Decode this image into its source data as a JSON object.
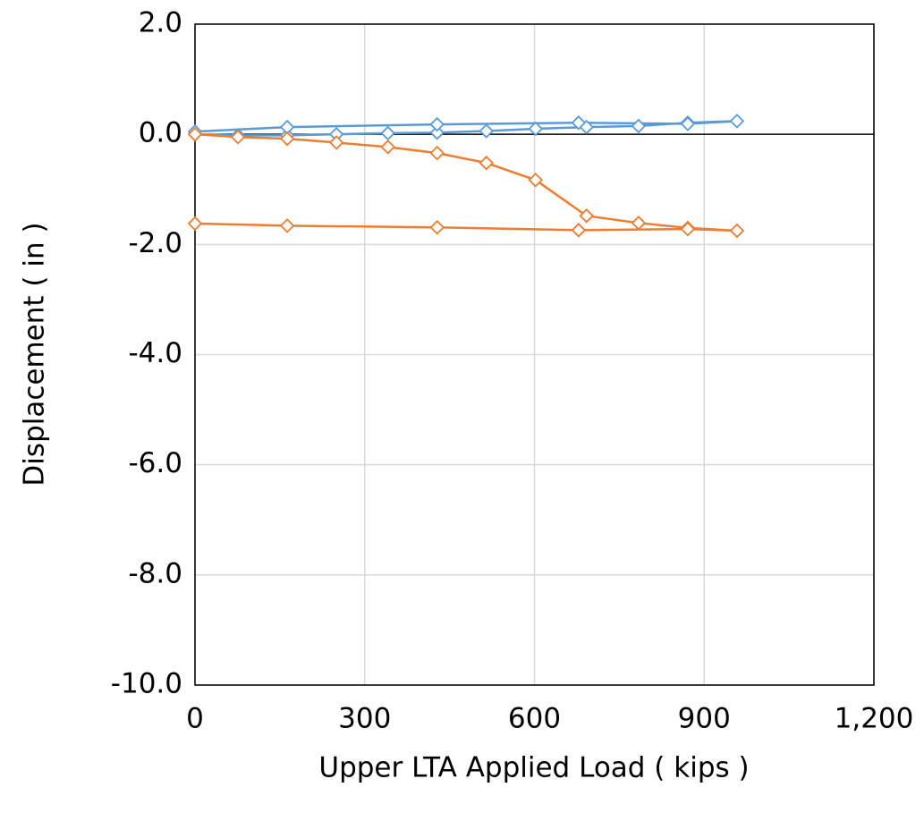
{
  "chart_data": {
    "type": "line",
    "xlabel": "Upper LTA Applied Load ( kips )",
    "ylabel": "Displacement ( in )",
    "xlim": [
      0,
      1200
    ],
    "xticks": [
      0,
      300,
      600,
      900,
      {
        "value": 1200,
        "label": "1,200"
      }
    ],
    "ylim": [
      -10,
      2
    ],
    "yticks": [
      {
        "value": -10,
        "label": "-10.0"
      },
      {
        "value": -8,
        "label": "-8.0"
      },
      {
        "value": -6,
        "label": "-6.0"
      },
      {
        "value": -4,
        "label": "-4.0"
      },
      {
        "value": -2,
        "label": "-2.0"
      },
      {
        "value": 0,
        "label": "0.0"
      },
      {
        "value": 2,
        "label": "2.0"
      }
    ],
    "grid": true,
    "series": [
      {
        "color": "#5b9bd5",
        "x": [
          0,
          76,
          163,
          250,
          341,
          428,
          515,
          602,
          692,
          784,
          871,
          958,
          871,
          678,
          428,
          163,
          0
        ],
        "values": [
          0,
          -0.02,
          -0.02,
          0,
          0.02,
          0.03,
          0.06,
          0.1,
          0.13,
          0.15,
          0.21,
          0.24,
          0.19,
          0.21,
          0.18,
          0.13,
          0.05
        ]
      },
      {
        "color": "#ed7d31",
        "x": [
          0,
          76,
          163,
          250,
          341,
          428,
          515,
          602,
          692,
          784,
          871,
          958,
          871,
          678,
          428,
          163,
          0
        ],
        "values": [
          0,
          -0.05,
          -0.08,
          -0.15,
          -0.23,
          -0.34,
          -0.52,
          -0.83,
          -1.48,
          -1.61,
          -1.7,
          -1.75,
          -1.72,
          -1.74,
          -1.69,
          -1.66,
          -1.62
        ]
      }
    ]
  }
}
